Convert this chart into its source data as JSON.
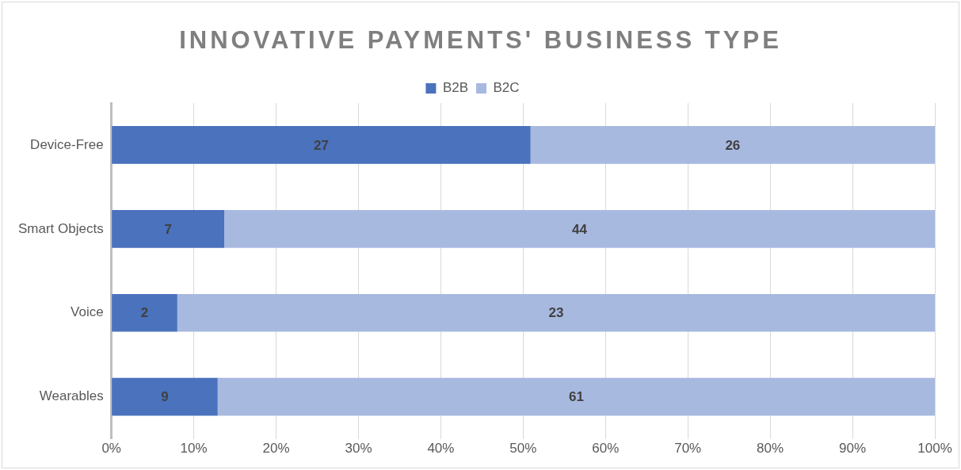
{
  "chart_data": {
    "type": "bar",
    "title": "INNOVATIVE PAYMENTS' BUSINESS TYPE",
    "orientation": "horizontal",
    "stacked": true,
    "categories": [
      "Device-Free",
      "Smart Objects",
      "Voice",
      "Wearables"
    ],
    "series": [
      {
        "name": "B2B",
        "color": "#4a72bd",
        "values": [
          50.9,
          13.7,
          8,
          12.9
        ]
      },
      {
        "name": "B2C",
        "color": "#a8b9e0",
        "values": [
          49.1,
          86.3,
          92,
          87.1
        ]
      }
    ],
    "annotations": [
      "27",
      "26",
      "7",
      "44",
      "2",
      "23",
      "9",
      "61"
    ],
    "xlim": [
      0,
      100
    ],
    "xticks": [
      {
        "value": 0,
        "label": "0%"
      },
      {
        "value": 10,
        "label": "10%"
      },
      {
        "value": 20,
        "label": "20%"
      },
      {
        "value": 30,
        "label": "30%"
      },
      {
        "value": 40,
        "label": "40%"
      },
      {
        "value": 50,
        "label": "50%"
      },
      {
        "value": 60,
        "label": "60%"
      },
      {
        "value": 70,
        "label": "70%"
      },
      {
        "value": 80,
        "label": "80%"
      },
      {
        "value": 90,
        "label": "90%"
      },
      {
        "value": 100,
        "label": "100%"
      }
    ],
    "grid": "x",
    "legend": "top"
  }
}
